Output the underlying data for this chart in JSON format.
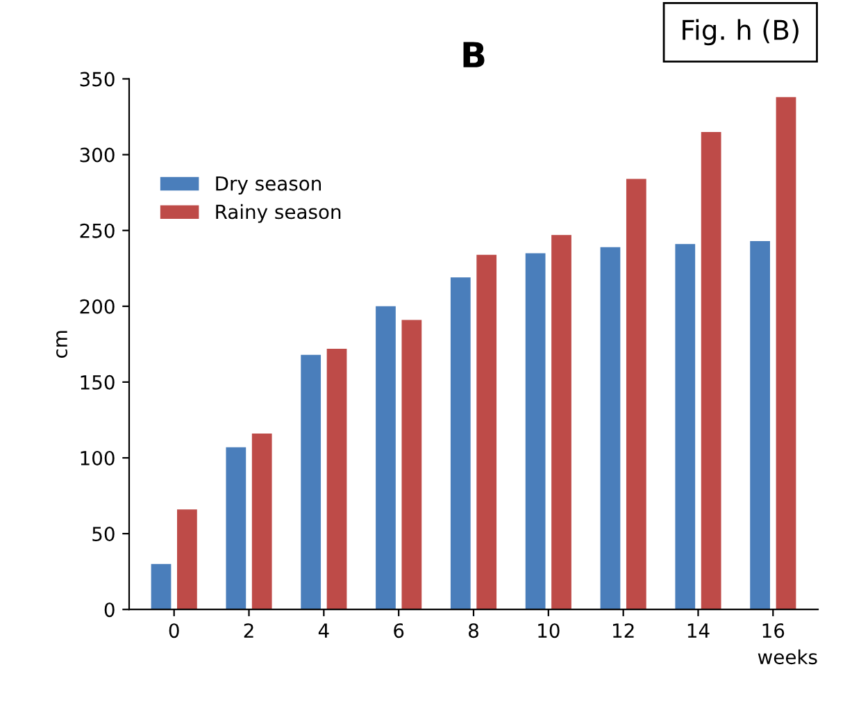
{
  "chart_data": {
    "type": "bar",
    "title": "B",
    "xlabel": "weeks",
    "ylabel": "cm",
    "categories": [
      "0",
      "2",
      "4",
      "6",
      "8",
      "10",
      "12",
      "14",
      "16"
    ],
    "series": [
      {
        "name": "Dry season",
        "color": "#4a7ebb",
        "values": [
          30,
          107,
          168,
          200,
          219,
          235,
          239,
          241,
          243
        ]
      },
      {
        "name": "Rainy season",
        "color": "#be4b48",
        "values": [
          66,
          116,
          172,
          191,
          234,
          247,
          284,
          315,
          338
        ]
      }
    ],
    "ylim": [
      0,
      350
    ],
    "yticks": [
      0,
      50,
      100,
      150,
      200,
      250,
      300,
      350
    ],
    "grid": false,
    "legend": "top left",
    "annotations": [
      "Fig. h (B)"
    ]
  }
}
